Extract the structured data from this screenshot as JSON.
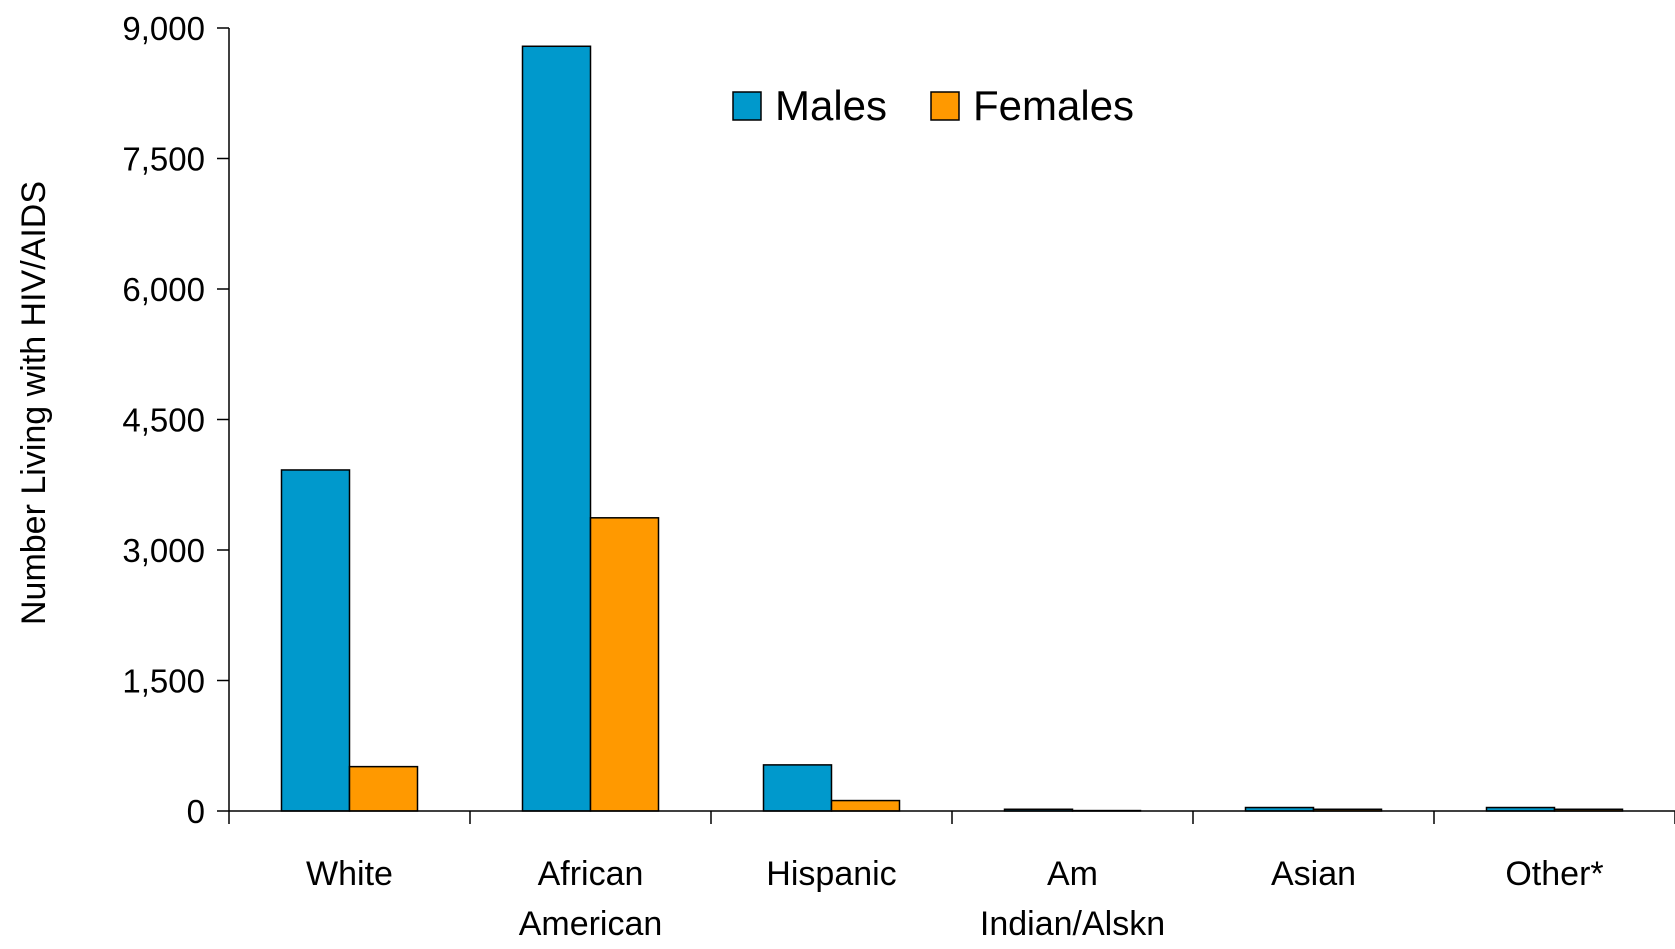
{
  "chart_data": {
    "type": "bar",
    "title": "",
    "xlabel": "",
    "ylabel": "Number Living with HIV/AIDS",
    "ylim": [
      0,
      9000
    ],
    "yticks": [
      "0",
      "1,500",
      "3,000",
      "4,500",
      "6,000",
      "7,500",
      "9,000"
    ],
    "ytick_values": [
      0,
      1500,
      3000,
      4500,
      6000,
      7500,
      9000
    ],
    "categories": [
      [
        "White"
      ],
      [
        "African",
        "American"
      ],
      [
        "Hispanic"
      ],
      [
        "Am",
        "Indian/Alskn"
      ],
      [
        "Asian"
      ],
      [
        "Other*"
      ]
    ],
    "series": [
      {
        "name": "Males",
        "color": "#0099cc",
        "values": [
          3920,
          8790,
          530,
          20,
          40,
          40
        ]
      },
      {
        "name": "Females",
        "color": "#ff9900",
        "values": [
          510,
          3370,
          120,
          5,
          20,
          20
        ]
      }
    ],
    "grid": false,
    "legend": "top-center"
  }
}
